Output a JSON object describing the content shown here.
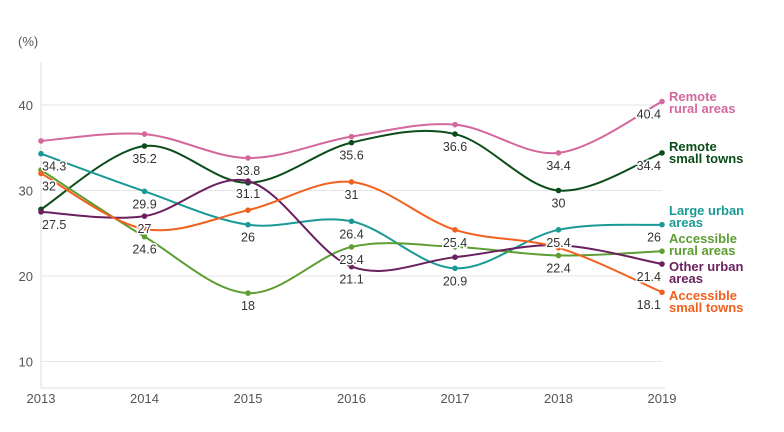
{
  "chart_data": {
    "type": "line",
    "ylabel": "(%)",
    "xlabel": "",
    "x": [
      "2013",
      "2014",
      "2015",
      "2016",
      "2017",
      "2018",
      "2019"
    ],
    "yticks": [
      10,
      20,
      30,
      40
    ],
    "ylim": [
      3,
      45
    ],
    "grid": true,
    "legend_placement": "right, inline at line ends",
    "series": [
      {
        "name": "Remote rural areas",
        "color": "#d4679d",
        "values": [
          35.8,
          36.6,
          33.8,
          36.3,
          37.7,
          34.4,
          40.4
        ]
      },
      {
        "name": "Remote small towns",
        "color": "#0b4d1a",
        "values": [
          27.8,
          35.2,
          30.9,
          35.6,
          36.6,
          30,
          34.4
        ]
      },
      {
        "name": "Large urban areas",
        "color": "#1a9a96",
        "values": [
          34.3,
          29.9,
          26,
          26.4,
          20.9,
          25.4,
          26
        ]
      },
      {
        "name": "Accessible rural areas",
        "color": "#5c9e31",
        "values": [
          32.4,
          24.6,
          18,
          23.4,
          23.4,
          22.4,
          22.9
        ]
      },
      {
        "name": "Other urban areas",
        "color": "#6a1f5e",
        "values": [
          27.5,
          27,
          31.1,
          21.1,
          22.2,
          23.6,
          21.4
        ]
      },
      {
        "name": "Accessible small towns",
        "color": "#f2601e",
        "values": [
          32,
          25.5,
          27.7,
          31,
          25.4,
          23.3,
          18.1
        ]
      }
    ],
    "value_labels": [
      {
        "series": 2,
        "x": 0,
        "text": "34.3"
      },
      {
        "series": 5,
        "x": 0,
        "text": "32"
      },
      {
        "series": 4,
        "x": 0,
        "text": "27.5"
      },
      {
        "series": 1,
        "x": 1,
        "text": "35.2"
      },
      {
        "series": 2,
        "x": 1,
        "text": "29.9"
      },
      {
        "series": 4,
        "x": 1,
        "text": "27"
      },
      {
        "series": 3,
        "x": 1,
        "text": "24.6"
      },
      {
        "series": 0,
        "x": 2,
        "text": "33.8"
      },
      {
        "series": 4,
        "x": 2,
        "text": "31.1"
      },
      {
        "series": 2,
        "x": 2,
        "text": "26"
      },
      {
        "series": 3,
        "x": 2,
        "text": "18"
      },
      {
        "series": 1,
        "x": 3,
        "text": "35.6"
      },
      {
        "series": 5,
        "x": 3,
        "text": "31"
      },
      {
        "series": 2,
        "x": 3,
        "text": "26.4"
      },
      {
        "series": 3,
        "x": 3,
        "text": "23.4"
      },
      {
        "series": 4,
        "x": 3,
        "text": "21.1"
      },
      {
        "series": 1,
        "x": 4,
        "text": "36.6"
      },
      {
        "series": 5,
        "x": 4,
        "text": "25.4"
      },
      {
        "series": 2,
        "x": 4,
        "text": "20.9"
      },
      {
        "series": 0,
        "x": 5,
        "text": "34.4"
      },
      {
        "series": 1,
        "x": 5,
        "text": "30"
      },
      {
        "series": 2,
        "x": 5,
        "text": "25.4"
      },
      {
        "series": 3,
        "x": 5,
        "text": "22.4"
      },
      {
        "series": 0,
        "x": 6,
        "text": "40.4"
      },
      {
        "series": 1,
        "x": 6,
        "text": "34.4"
      },
      {
        "series": 2,
        "x": 6,
        "text": "26"
      },
      {
        "series": 4,
        "x": 6,
        "text": "21.4"
      },
      {
        "series": 5,
        "x": 6,
        "text": "18.1"
      }
    ],
    "legend": [
      {
        "series": 0,
        "lines": [
          "Remote",
          "rural areas"
        ]
      },
      {
        "series": 1,
        "lines": [
          "Remote",
          "small towns"
        ]
      },
      {
        "series": 2,
        "lines": [
          "Large urban",
          "areas"
        ]
      },
      {
        "series": 3,
        "lines": [
          "Accessible",
          "rural areas"
        ]
      },
      {
        "series": 4,
        "lines": [
          "Other urban",
          "areas"
        ]
      },
      {
        "series": 5,
        "lines": [
          "Accessible",
          "small towns"
        ]
      }
    ]
  }
}
